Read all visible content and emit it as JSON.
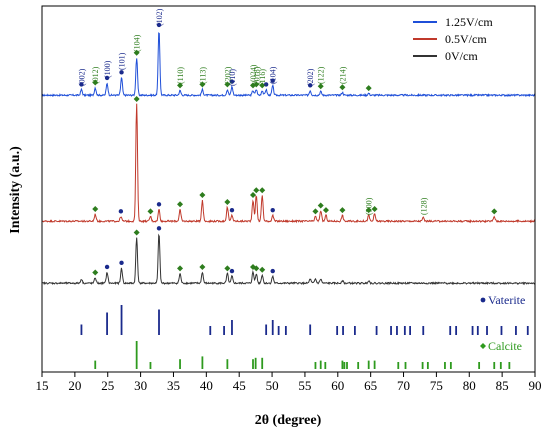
{
  "chart_data": {
    "type": "line",
    "xlabel": "2θ (degree)",
    "ylabel": "Intensity (a.u.)",
    "xlim": [
      15,
      90
    ],
    "xticks": [
      15,
      20,
      25,
      30,
      35,
      40,
      45,
      50,
      55,
      60,
      65,
      70,
      75,
      80,
      85,
      90
    ],
    "legend": {
      "placement": "top-right"
    },
    "series": [
      {
        "name": "1.25V/cm",
        "color": "#1f4fd8",
        "order": 0,
        "peaks": [
          [
            21.0,
            0.06
          ],
          [
            23.1,
            0.08
          ],
          [
            24.9,
            0.13
          ],
          [
            27.1,
            0.19
          ],
          [
            29.4,
            0.4
          ],
          [
            32.8,
            0.7
          ],
          [
            36.0,
            0.05
          ],
          [
            39.4,
            0.06
          ],
          [
            43.2,
            0.06
          ],
          [
            43.9,
            0.09
          ],
          [
            47.1,
            0.05
          ],
          [
            47.6,
            0.06
          ],
          [
            48.5,
            0.05
          ],
          [
            49.1,
            0.06
          ],
          [
            50.1,
            0.1
          ],
          [
            55.8,
            0.05
          ],
          [
            57.4,
            0.04
          ],
          [
            60.7,
            0.03
          ],
          [
            64.7,
            0.02
          ]
        ]
      },
      {
        "name": "0.5V/cm",
        "color": "#c0392b",
        "order": 1,
        "peaks": [
          [
            23.1,
            0.06
          ],
          [
            27.0,
            0.04
          ],
          [
            29.4,
            1.0
          ],
          [
            31.5,
            0.04
          ],
          [
            32.8,
            0.1
          ],
          [
            36.0,
            0.1
          ],
          [
            39.4,
            0.18
          ],
          [
            43.2,
            0.12
          ],
          [
            43.9,
            0.05
          ],
          [
            47.1,
            0.18
          ],
          [
            47.6,
            0.22
          ],
          [
            48.5,
            0.22
          ],
          [
            50.1,
            0.05
          ],
          [
            56.6,
            0.04
          ],
          [
            57.4,
            0.09
          ],
          [
            58.2,
            0.05
          ],
          [
            60.7,
            0.05
          ],
          [
            64.7,
            0.05
          ],
          [
            65.6,
            0.06
          ],
          [
            73.0,
            0.03
          ],
          [
            83.8,
            0.04
          ]
        ]
      },
      {
        "name": "0V/cm",
        "color": "#333333",
        "order": 2,
        "peaks": [
          [
            21.0,
            0.03
          ],
          [
            23.1,
            0.04
          ],
          [
            24.9,
            0.08
          ],
          [
            27.1,
            0.11
          ],
          [
            29.4,
            0.33
          ],
          [
            32.8,
            0.36
          ],
          [
            36.0,
            0.07
          ],
          [
            39.4,
            0.08
          ],
          [
            43.2,
            0.07
          ],
          [
            43.9,
            0.05
          ],
          [
            47.1,
            0.08
          ],
          [
            47.6,
            0.07
          ],
          [
            48.5,
            0.06
          ],
          [
            50.1,
            0.05
          ],
          [
            55.8,
            0.03
          ],
          [
            56.6,
            0.03
          ],
          [
            57.4,
            0.03
          ],
          [
            60.7,
            0.02
          ],
          [
            64.7,
            0.02
          ]
        ]
      }
    ],
    "annotations": [
      {
        "text": "(002)",
        "x": 21.0,
        "color": "#1a2a8c"
      },
      {
        "text": "(012)",
        "x": 23.1,
        "color": "#2e7d1e"
      },
      {
        "text": "(100)",
        "x": 24.9,
        "color": "#1a2a8c"
      },
      {
        "text": "(101)",
        "x": 27.1,
        "color": "#1a2a8c"
      },
      {
        "text": "(104)",
        "x": 29.4,
        "color": "#2e7d1e"
      },
      {
        "text": "(102)",
        "x": 32.8,
        "color": "#1a2a8c"
      },
      {
        "text": "(110)",
        "x": 36.0,
        "color": "#2e7d1e"
      },
      {
        "text": "(113)",
        "x": 39.4,
        "color": "#2e7d1e"
      },
      {
        "text": "(202)",
        "x": 43.2,
        "color": "#2e7d1e"
      },
      {
        "text": "(110)",
        "x": 43.9,
        "color": "#1a2a8c"
      },
      {
        "text": "(024)",
        "x": 47.1,
        "color": "#2e7d1e"
      },
      {
        "text": "(018)",
        "x": 47.6,
        "color": "#2e7d1e"
      },
      {
        "text": "(116)",
        "x": 48.5,
        "color": "#2e7d1e"
      },
      {
        "text": "(104)",
        "x": 50.1,
        "color": "#1a2a8c"
      },
      {
        "text": "(202)",
        "x": 55.8,
        "color": "#1a2a8c"
      },
      {
        "text": "(122)",
        "x": 57.4,
        "color": "#2e7d1e"
      },
      {
        "text": "(214)",
        "x": 60.7,
        "color": "#2e7d1e"
      },
      {
        "text": "(300)",
        "x": 64.7,
        "color": "#2e7d1e"
      },
      {
        "text": "(128)",
        "x": 73.0,
        "color": "#2e7d1e"
      }
    ],
    "references": [
      {
        "name": "Vaterite",
        "color": "#1a2a8c",
        "marker": "circle",
        "lines": [
          [
            21.0,
            0.35
          ],
          [
            24.9,
            0.75
          ],
          [
            27.1,
            1.0
          ],
          [
            32.8,
            0.85
          ],
          [
            40.6,
            0.3
          ],
          [
            42.7,
            0.3
          ],
          [
            43.9,
            0.5
          ],
          [
            49.1,
            0.35
          ],
          [
            50.1,
            0.5
          ],
          [
            51.0,
            0.3
          ],
          [
            52.1,
            0.3
          ],
          [
            55.8,
            0.35
          ],
          [
            59.9,
            0.3
          ],
          [
            60.8,
            0.3
          ],
          [
            62.6,
            0.3
          ],
          [
            65.9,
            0.3
          ],
          [
            68.1,
            0.3
          ],
          [
            69.0,
            0.3
          ],
          [
            70.2,
            0.3
          ],
          [
            71.0,
            0.3
          ],
          [
            73.0,
            0.3
          ],
          [
            77.1,
            0.3
          ],
          [
            78.0,
            0.3
          ],
          [
            80.5,
            0.3
          ],
          [
            81.3,
            0.3
          ],
          [
            82.7,
            0.3
          ],
          [
            84.9,
            0.3
          ],
          [
            87.1,
            0.3
          ],
          [
            88.9,
            0.3
          ]
        ]
      },
      {
        "name": "Calcite",
        "color": "#2e9a1e",
        "marker": "diamond",
        "lines": [
          [
            23.1,
            0.3
          ],
          [
            29.4,
            1.0
          ],
          [
            31.5,
            0.25
          ],
          [
            36.0,
            0.35
          ],
          [
            39.4,
            0.45
          ],
          [
            43.2,
            0.35
          ],
          [
            47.1,
            0.35
          ],
          [
            47.5,
            0.4
          ],
          [
            48.5,
            0.4
          ],
          [
            56.6,
            0.25
          ],
          [
            57.4,
            0.3
          ],
          [
            58.1,
            0.25
          ],
          [
            60.7,
            0.3
          ],
          [
            61.0,
            0.25
          ],
          [
            61.4,
            0.25
          ],
          [
            63.1,
            0.25
          ],
          [
            64.7,
            0.3
          ],
          [
            65.6,
            0.3
          ],
          [
            69.2,
            0.25
          ],
          [
            70.3,
            0.25
          ],
          [
            72.9,
            0.25
          ],
          [
            73.7,
            0.25
          ],
          [
            76.3,
            0.25
          ],
          [
            77.2,
            0.25
          ],
          [
            81.5,
            0.25
          ],
          [
            83.8,
            0.25
          ],
          [
            84.8,
            0.25
          ],
          [
            86.1,
            0.25
          ]
        ]
      }
    ]
  }
}
